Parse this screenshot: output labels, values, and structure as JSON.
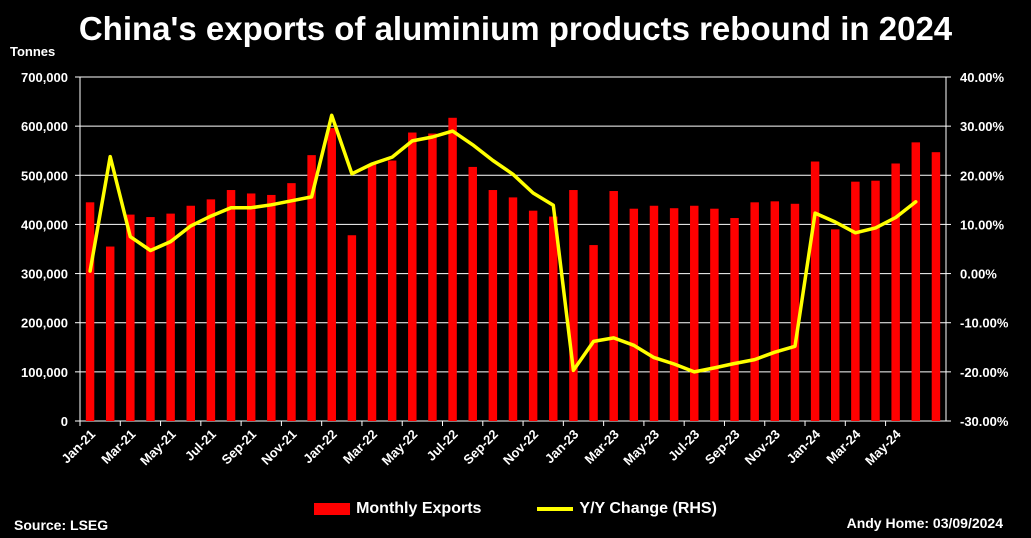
{
  "chart_data": {
    "type": "bar",
    "title": "China's exports of aluminium products rebound in 2024",
    "ylabel": "Tonnes",
    "y2label": "",
    "ylim": [
      0,
      700000
    ],
    "y2lim": [
      -0.3,
      0.4
    ],
    "yticks": [
      "0",
      "100,000",
      "200,000",
      "300,000",
      "400,000",
      "500,000",
      "600,000",
      "700,000"
    ],
    "y2ticks": [
      "-30.00%",
      "-20.00%",
      "-10.00%",
      "0.00%",
      "10.00%",
      "20.00%",
      "30.00%",
      "40.00%"
    ],
    "grid": true,
    "legend_position": "bottom",
    "categories": [
      "Jan-21",
      "Feb-21",
      "Mar-21",
      "Apr-21",
      "May-21",
      "Jun-21",
      "Jul-21",
      "Aug-21",
      "Sep-21",
      "Oct-21",
      "Nov-21",
      "Dec-21",
      "Jan-22",
      "Feb-22",
      "Mar-22",
      "Apr-22",
      "May-22",
      "Jun-22",
      "Jul-22",
      "Aug-22",
      "Sep-22",
      "Oct-22",
      "Nov-22",
      "Dec-22",
      "Jan-23",
      "Feb-23",
      "Mar-23",
      "Apr-23",
      "May-23",
      "Jun-23",
      "Jul-23",
      "Aug-23",
      "Sep-23",
      "Oct-23",
      "Nov-23",
      "Dec-23",
      "Jan-24",
      "Feb-24",
      "Mar-24",
      "Apr-24",
      "May-24",
      "Jun-24",
      "Jul-24"
    ],
    "xtick_labels": [
      "Jan-21",
      "Mar-21",
      "May-21",
      "Jul-21",
      "Sep-21",
      "Nov-21",
      "Jan-22",
      "Mar-22",
      "May-22",
      "Jul-22",
      "Sep-22",
      "Nov-22",
      "Jan-23",
      "Mar-23",
      "May-23",
      "Jul-23",
      "Sep-23",
      "Nov-23",
      "Jan-24",
      "Mar-24",
      "May-24"
    ],
    "series": [
      {
        "name": "Monthly Exports",
        "type": "bar",
        "axis": "left",
        "color": "#ff0000",
        "values": [
          445000,
          355000,
          420000,
          415000,
          422000,
          438000,
          451000,
          470000,
          463000,
          460000,
          484000,
          541000,
          596000,
          378000,
          523000,
          530000,
          587000,
          585000,
          617000,
          517000,
          470000,
          455000,
          428000,
          416000,
          470000,
          358000,
          468000,
          432000,
          438000,
          433000,
          438000,
          432000,
          413000,
          445000,
          447000,
          442000,
          528000,
          390000,
          487000,
          489000,
          524000,
          567000,
          547000
        ]
      },
      {
        "name": "Y/Y Change (RHS)",
        "type": "line",
        "axis": "right",
        "color": "#ffff00",
        "values": [
          0.005,
          0.238,
          0.075,
          0.047,
          0.065,
          0.097,
          0.117,
          0.134,
          0.134,
          0.14,
          0.148,
          0.156,
          0.322,
          0.203,
          0.223,
          0.237,
          0.27,
          0.278,
          0.29,
          0.262,
          0.23,
          0.202,
          0.164,
          0.139,
          -0.197,
          -0.138,
          -0.131,
          -0.146,
          -0.171,
          -0.184,
          -0.2,
          -0.192,
          -0.183,
          -0.175,
          -0.16,
          -0.148,
          0.123,
          0.105,
          0.083,
          0.093,
          0.114,
          0.146,
          null
        ]
      }
    ]
  },
  "footer": {
    "source": "Source: LSEG",
    "credit": "Andy Home: 03/09/2024"
  }
}
